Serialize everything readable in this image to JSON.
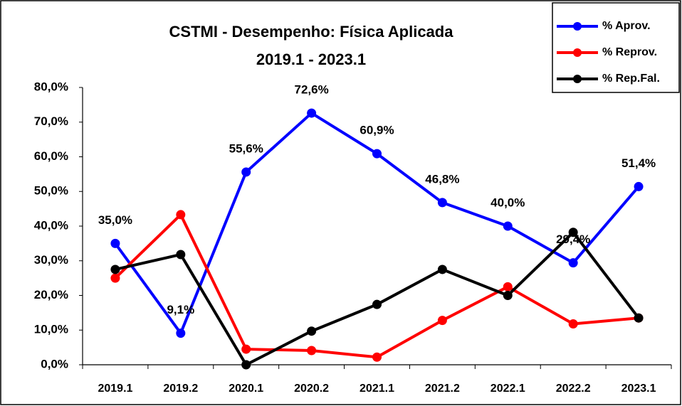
{
  "chart_data": {
    "type": "line",
    "title": "CSTMI - Desempenho: Física Aplicada",
    "subtitle": "2019.1 - 2023.1",
    "categories": [
      "2019.1",
      "2019.2",
      "2020.1",
      "2020.2",
      "2021.1",
      "2021.2",
      "2022.1",
      "2022.2",
      "2023.1"
    ],
    "series": [
      {
        "name": "% Aprov.",
        "color": "#0000ff",
        "values": [
          35.0,
          9.1,
          55.6,
          72.6,
          60.9,
          46.8,
          40.0,
          29.4,
          51.4
        ],
        "value_labels": [
          "35,0%",
          "9,1%",
          "55,6%",
          "72,6%",
          "60,9%",
          "46,8%",
          "40,0%",
          "29,4%",
          "51,4%"
        ]
      },
      {
        "name": "% Reprov.",
        "color": "#ff0000",
        "values": [
          25.0,
          43.3,
          4.5,
          4.1,
          2.2,
          12.8,
          22.5,
          11.8,
          13.5
        ]
      },
      {
        "name": "% Rep.Fal.",
        "color": "#000000",
        "values": [
          27.5,
          31.8,
          0.0,
          9.7,
          17.4,
          27.5,
          20.0,
          38.2,
          13.5
        ]
      }
    ],
    "ylim": [
      0,
      80
    ],
    "yticks": [
      {
        "value": 0,
        "label": "0,0%"
      },
      {
        "value": 10,
        "label": "10,0%"
      },
      {
        "value": 20,
        "label": "20,0%"
      },
      {
        "value": 30,
        "label": "30,0%"
      },
      {
        "value": 40,
        "label": "40,0%"
      },
      {
        "value": 50,
        "label": "50,0%"
      },
      {
        "value": 60,
        "label": "60,0%"
      },
      {
        "value": 70,
        "label": "70,0%"
      },
      {
        "value": 80,
        "label": "80,0%"
      }
    ],
    "grid": false,
    "legend": "top-right"
  }
}
